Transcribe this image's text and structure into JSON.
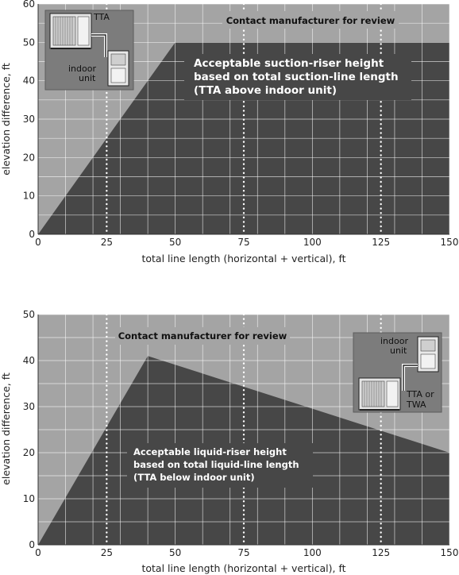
{
  "colors": {
    "acceptable_region": "#474747",
    "review_region": "#a4a4a4",
    "grid": "#ffffff",
    "inset_bg": "#7c7c7c"
  },
  "chart_data": [
    {
      "type": "area",
      "xlabel": "total line length (horizontal + vertical), ft",
      "ylabel": "elevation difference, ft",
      "xlim": [
        0,
        150
      ],
      "ylim": [
        0,
        60
      ],
      "xticks": [
        0,
        25,
        50,
        75,
        100,
        125,
        150
      ],
      "yticks": [
        0,
        10,
        20,
        30,
        40,
        50,
        60
      ],
      "grid": true,
      "dotted_x_lines": [
        25,
        75,
        125
      ],
      "region_boundary": {
        "x": [
          0,
          50,
          150
        ],
        "y": [
          0,
          50,
          50
        ]
      },
      "acceptable_label": [
        "Acceptable suction-riser height",
        "based on total suction-line length",
        "(TTA above indoor unit)"
      ],
      "review_label": "Contact manufacturer for review",
      "inset": {
        "top_unit": "TTA",
        "bottom_unit": [
          "indoor",
          "unit"
        ]
      }
    },
    {
      "type": "area",
      "xlabel": "total line length (horizontal + vertical), ft",
      "ylabel": "elevation difference, ft",
      "xlim": [
        0,
        150
      ],
      "ylim": [
        0,
        50
      ],
      "xticks": [
        0,
        25,
        50,
        75,
        100,
        125,
        150
      ],
      "yticks": [
        0,
        10,
        20,
        30,
        40,
        50
      ],
      "grid": true,
      "dotted_x_lines": [
        25,
        75,
        125
      ],
      "region_boundary": {
        "x": [
          0,
          40,
          150
        ],
        "y": [
          0,
          41,
          20
        ]
      },
      "acceptable_label": [
        "Acceptable liquid-riser height",
        "based on total liquid-line length",
        "(TTA below indoor unit)"
      ],
      "review_label": "Contact manufacturer for review",
      "inset": {
        "top_unit": [
          "indoor",
          "unit"
        ],
        "bottom_unit": [
          "TTA or",
          "TWA"
        ]
      }
    }
  ]
}
